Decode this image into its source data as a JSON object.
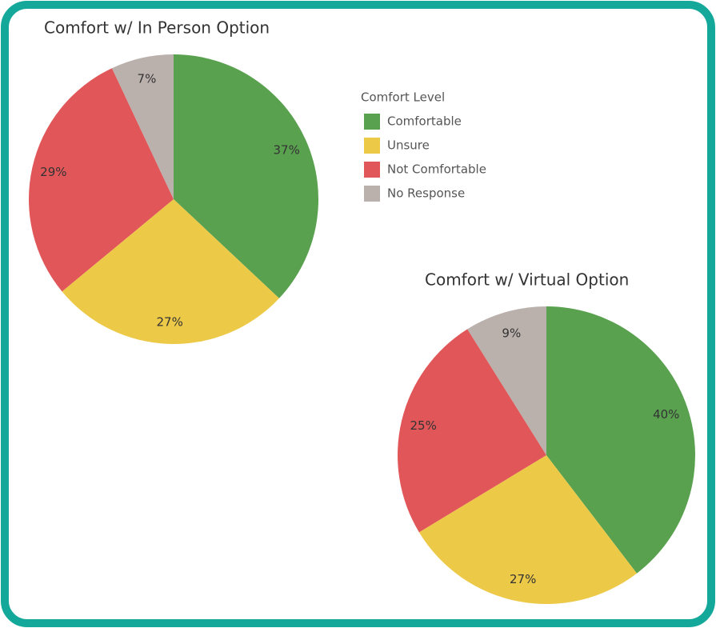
{
  "chart_data": [
    {
      "type": "pie",
      "title": "Comfort w/ In Person Option",
      "legend_title": "Comfort Level",
      "categories": [
        "Comfortable",
        "Unsure",
        "Not Comfortable",
        "No Response"
      ],
      "values": [
        37,
        27,
        29,
        7
      ],
      "value_labels": [
        "37%",
        "27%",
        "29%",
        "7%"
      ],
      "colors": [
        "#59a14f",
        "#edc948",
        "#e15759",
        "#bab0ac"
      ]
    },
    {
      "type": "pie",
      "title": "Comfort w/ Virtual Option",
      "categories": [
        "Comfortable",
        "Unsure",
        "Not Comfortable",
        "No Response"
      ],
      "values": [
        40,
        27,
        25,
        9
      ],
      "value_labels": [
        "40%",
        "27%",
        "25%",
        "9%"
      ],
      "colors": [
        "#59a14f",
        "#edc948",
        "#e15759",
        "#bab0ac"
      ]
    }
  ]
}
